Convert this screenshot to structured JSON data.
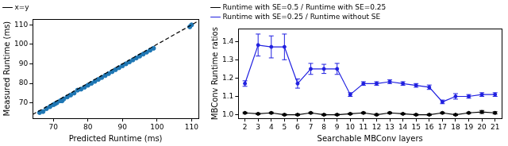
{
  "chart_data": [
    {
      "type": "scatter",
      "x_label": "Predicted Runtime (ms)",
      "y_label": "Measured Runtime (ms)",
      "xlim": [
        64,
        112
      ],
      "ylim": [
        62,
        113
      ],
      "xticks": [
        70,
        80,
        90,
        100,
        110
      ],
      "yticks": [
        70,
        80,
        90,
        100,
        110
      ],
      "grid": false,
      "legend": "upper left",
      "series": [
        {
          "name": "x=y",
          "type": "line",
          "line_style": "dashed",
          "color": "#000000",
          "x": [
            64,
            112
          ],
          "values": [
            64,
            112
          ]
        },
        {
          "type": "scatter",
          "marker": "circle",
          "color": "#1f77b4",
          "x": [
            66,
            67,
            68,
            69,
            70,
            70.5,
            71,
            72,
            72.5,
            73,
            74,
            75,
            76,
            77,
            78,
            79,
            80,
            81,
            82,
            83,
            84,
            85,
            86,
            87,
            88,
            89,
            90,
            91,
            92,
            93,
            94,
            95,
            96,
            97,
            98,
            99,
            109.5,
            110
          ],
          "values": [
            65,
            65.5,
            67,
            68,
            69,
            69.5,
            70,
            71,
            71,
            72,
            73,
            74,
            75,
            76.5,
            77,
            78,
            79,
            80,
            81,
            82,
            83,
            84,
            85,
            86,
            87,
            88,
            89,
            90,
            91,
            92,
            93,
            94,
            95,
            96,
            97,
            98,
            109,
            110
          ]
        }
      ]
    },
    {
      "type": "line",
      "x_label": "Searchable MBConv layers",
      "y_label": "MBConv Runtime ratios",
      "xlim": [
        1.5,
        21.5
      ],
      "ylim": [
        0.98,
        1.47
      ],
      "xticks": [
        2,
        3,
        4,
        5,
        6,
        7,
        8,
        9,
        10,
        11,
        12,
        13,
        14,
        15,
        16,
        17,
        18,
        19,
        20,
        21
      ],
      "yticks": [
        {
          "value": 1,
          "label": "1.0"
        },
        1.1,
        1.2,
        1.3,
        1.4
      ],
      "grid": false,
      "legend": "upper left",
      "series": [
        {
          "name": "Runtime with SE=0.5 / Runtime with SE=0.25",
          "color": "#000000",
          "marker": "circle",
          "line_style": "solid",
          "x": [
            2,
            3,
            4,
            5,
            6,
            7,
            8,
            9,
            10,
            11,
            12,
            13,
            14,
            15,
            16,
            17,
            18,
            19,
            20,
            21
          ],
          "values": [
            1.01,
            1.005,
            1.01,
            1.0,
            1.0,
            1.01,
            1.0,
            1.0,
            1.005,
            1.01,
            1.0,
            1.01,
            1.005,
            1.0,
            1.0,
            1.01,
            1.0,
            1.01,
            1.015,
            1.01
          ],
          "errors": [
            0.004,
            0.004,
            0.004,
            0.004,
            0.004,
            0.004,
            0.004,
            0.004,
            0.004,
            0.004,
            0.004,
            0.004,
            0.004,
            0.004,
            0.004,
            0.004,
            0.004,
            0.004,
            0.008,
            0.006
          ]
        },
        {
          "name": "Runtime with SE=0.25 / Runtime without SE",
          "color": "#2020e0",
          "marker": "circle",
          "line_style": "solid",
          "x": [
            2,
            3,
            4,
            5,
            6,
            7,
            8,
            9,
            10,
            11,
            12,
            13,
            14,
            15,
            16,
            17,
            18,
            19,
            20,
            21
          ],
          "values": [
            1.17,
            1.38,
            1.37,
            1.37,
            1.17,
            1.25,
            1.25,
            1.25,
            1.11,
            1.17,
            1.17,
            1.18,
            1.17,
            1.16,
            1.15,
            1.07,
            1.1,
            1.1,
            1.11,
            1.11
          ],
          "errors": [
            0.015,
            0.06,
            0.06,
            0.07,
            0.025,
            0.03,
            0.025,
            0.03,
            0.01,
            0.01,
            0.01,
            0.01,
            0.01,
            0.01,
            0.012,
            0.01,
            0.015,
            0.01,
            0.01,
            0.01
          ]
        }
      ]
    }
  ]
}
